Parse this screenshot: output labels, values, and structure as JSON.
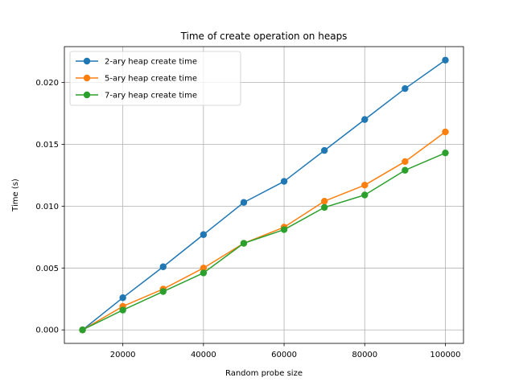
{
  "chart_data": {
    "type": "line",
    "title": "Time of create operation on heaps",
    "xlabel": "Random probe size",
    "ylabel": "Time (s)",
    "xlim": [
      5500,
      104500
    ],
    "ylim": [
      -0.00109,
      0.02289
    ],
    "grid": true,
    "legend_position": "upper-left",
    "x": [
      10000,
      20000,
      30000,
      40000,
      50000,
      60000,
      70000,
      80000,
      90000,
      100000
    ],
    "xticks": [
      20000,
      40000,
      60000,
      80000,
      100000
    ],
    "xtick_labels": [
      "20000",
      "40000",
      "60000",
      "80000",
      "100000"
    ],
    "yticks": [
      0.0,
      0.005,
      0.01,
      0.015,
      0.02
    ],
    "ytick_labels": [
      "0.000",
      "0.005",
      "0.010",
      "0.015",
      "0.020"
    ],
    "series": [
      {
        "name": "2-ary heap create time",
        "color": "#1f77b4",
        "values": [
          0.0,
          0.0026,
          0.0051,
          0.0077,
          0.0103,
          0.012,
          0.0145,
          0.017,
          0.0195,
          0.0218
        ]
      },
      {
        "name": "5-ary heap create time",
        "color": "#ff7f0e",
        "values": [
          0.0,
          0.0019,
          0.0033,
          0.005,
          0.007,
          0.0083,
          0.0104,
          0.0117,
          0.0136,
          0.016
        ]
      },
      {
        "name": "7-ary heap create time",
        "color": "#2ca02c",
        "values": [
          0.0,
          0.0016,
          0.0031,
          0.0046,
          0.007,
          0.0081,
          0.0099,
          0.0109,
          0.0129,
          0.0143
        ]
      }
    ]
  }
}
